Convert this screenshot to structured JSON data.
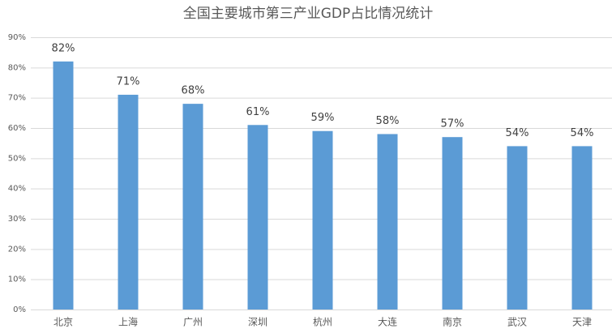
{
  "chart_data": {
    "type": "bar",
    "title": "全国主要城市第三产业GDP占比情况统计",
    "categories": [
      "北京",
      "上海",
      "广州",
      "深圳",
      "杭州",
      "大连",
      "南京",
      "武汉",
      "天津"
    ],
    "values": [
      82,
      71,
      68,
      61,
      59,
      58,
      57,
      54,
      54
    ],
    "value_labels": [
      "82%",
      "71%",
      "68%",
      "61%",
      "59%",
      "58%",
      "57%",
      "54%",
      "54%"
    ],
    "color": "#5b9bd5",
    "ylim": [
      0,
      90
    ],
    "yticks": [
      {
        "value": 0,
        "label": "0%"
      },
      {
        "value": 10,
        "label": "10%"
      },
      {
        "value": 20,
        "label": "20%"
      },
      {
        "value": 30,
        "label": "30%"
      },
      {
        "value": 40,
        "label": "40%"
      },
      {
        "value": 50,
        "label": "50%"
      },
      {
        "value": 60,
        "label": "60%"
      },
      {
        "value": 70,
        "label": "70%"
      },
      {
        "value": 80,
        "label": "80%"
      },
      {
        "value": 90,
        "label": "90%"
      }
    ],
    "grid": true
  }
}
